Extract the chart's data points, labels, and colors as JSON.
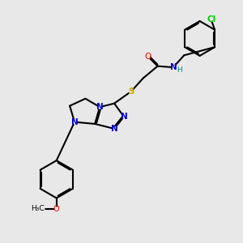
{
  "bg_color": "#e8e8e8",
  "atom_colors": {
    "C": "#000000",
    "N": "#0000cc",
    "O": "#ff0000",
    "S": "#ccaa00",
    "Cl": "#00cc00",
    "H": "#008888"
  },
  "bond_color": "#000000",
  "bond_width": 1.5
}
